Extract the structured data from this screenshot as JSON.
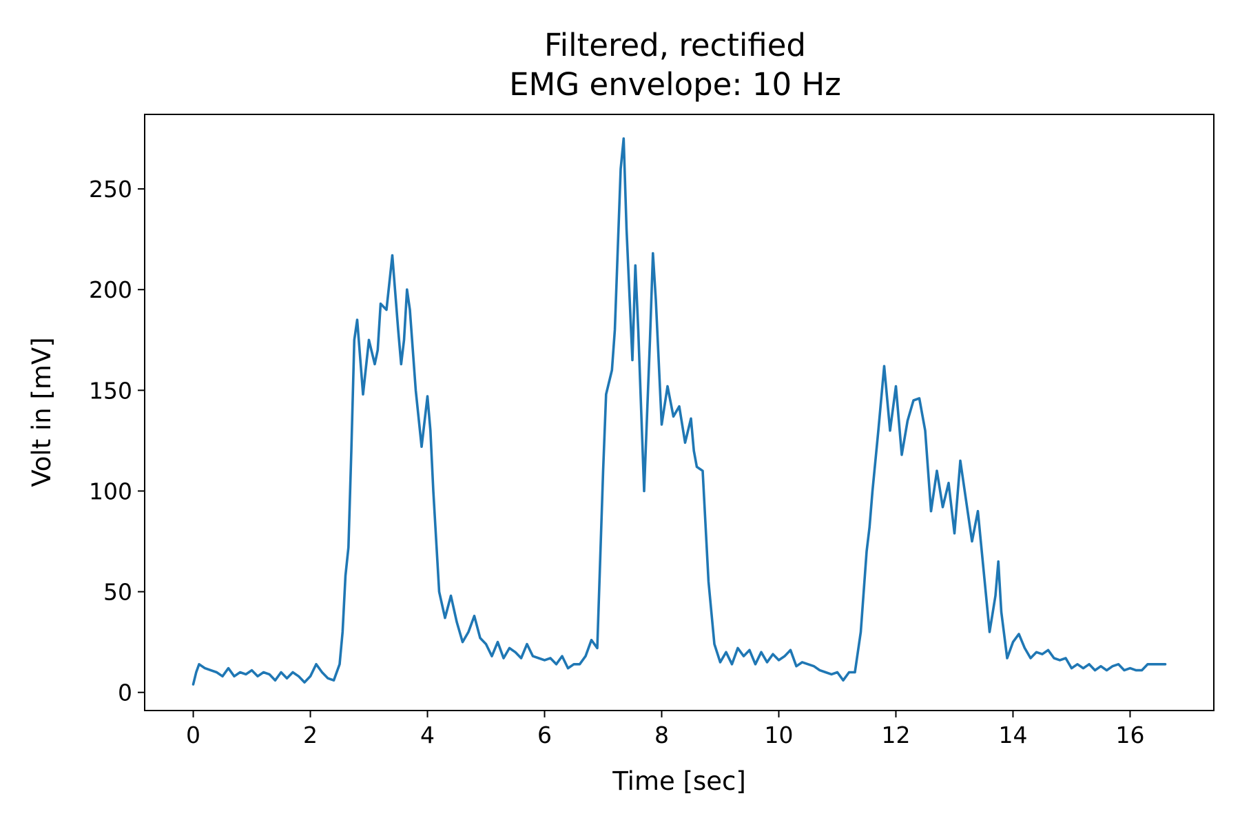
{
  "chart_data": {
    "type": "line",
    "title_line1": "Filtered, rectified",
    "title_line2": "EMG envelope: 10 Hz",
    "xlabel": "Time [sec]",
    "ylabel": "Volt in [mV]",
    "xlim": [
      -0.83,
      17.43
    ],
    "ylim": [
      -9,
      287
    ],
    "xticks": [
      0,
      2,
      4,
      6,
      8,
      10,
      12,
      14,
      16
    ],
    "yticks": [
      0,
      50,
      100,
      150,
      200,
      250
    ],
    "grid": false,
    "legend": "none",
    "series": [
      {
        "color": "#1f77b4",
        "points": [
          [
            0.0,
            4
          ],
          [
            0.05,
            10
          ],
          [
            0.1,
            14
          ],
          [
            0.2,
            12
          ],
          [
            0.3,
            11
          ],
          [
            0.4,
            10
          ],
          [
            0.5,
            8
          ],
          [
            0.6,
            12
          ],
          [
            0.7,
            8
          ],
          [
            0.8,
            10
          ],
          [
            0.9,
            9
          ],
          [
            1.0,
            11
          ],
          [
            1.1,
            8
          ],
          [
            1.2,
            10
          ],
          [
            1.3,
            9
          ],
          [
            1.4,
            6
          ],
          [
            1.5,
            10
          ],
          [
            1.6,
            7
          ],
          [
            1.7,
            10
          ],
          [
            1.8,
            8
          ],
          [
            1.9,
            5
          ],
          [
            2.0,
            8
          ],
          [
            2.1,
            14
          ],
          [
            2.2,
            10
          ],
          [
            2.3,
            7
          ],
          [
            2.4,
            6
          ],
          [
            2.5,
            14
          ],
          [
            2.55,
            30
          ],
          [
            2.6,
            58
          ],
          [
            2.65,
            72
          ],
          [
            2.7,
            120
          ],
          [
            2.75,
            175
          ],
          [
            2.8,
            185
          ],
          [
            2.9,
            148
          ],
          [
            3.0,
            175
          ],
          [
            3.1,
            163
          ],
          [
            3.15,
            170
          ],
          [
            3.2,
            193
          ],
          [
            3.3,
            190
          ],
          [
            3.4,
            217
          ],
          [
            3.5,
            180
          ],
          [
            3.55,
            163
          ],
          [
            3.6,
            175
          ],
          [
            3.65,
            200
          ],
          [
            3.7,
            190
          ],
          [
            3.8,
            150
          ],
          [
            3.9,
            122
          ],
          [
            4.0,
            147
          ],
          [
            4.05,
            130
          ],
          [
            4.1,
            100
          ],
          [
            4.2,
            50
          ],
          [
            4.3,
            37
          ],
          [
            4.4,
            48
          ],
          [
            4.5,
            35
          ],
          [
            4.6,
            25
          ],
          [
            4.7,
            30
          ],
          [
            4.8,
            38
          ],
          [
            4.9,
            27
          ],
          [
            5.0,
            24
          ],
          [
            5.1,
            18
          ],
          [
            5.2,
            25
          ],
          [
            5.3,
            17
          ],
          [
            5.4,
            22
          ],
          [
            5.5,
            20
          ],
          [
            5.6,
            17
          ],
          [
            5.7,
            24
          ],
          [
            5.8,
            18
          ],
          [
            5.9,
            17
          ],
          [
            6.0,
            16
          ],
          [
            6.1,
            17
          ],
          [
            6.2,
            14
          ],
          [
            6.3,
            18
          ],
          [
            6.4,
            12
          ],
          [
            6.5,
            14
          ],
          [
            6.6,
            14
          ],
          [
            6.7,
            18
          ],
          [
            6.8,
            26
          ],
          [
            6.9,
            22
          ],
          [
            7.0,
            110
          ],
          [
            7.05,
            148
          ],
          [
            7.15,
            160
          ],
          [
            7.2,
            180
          ],
          [
            7.3,
            260
          ],
          [
            7.35,
            275
          ],
          [
            7.4,
            230
          ],
          [
            7.5,
            165
          ],
          [
            7.55,
            212
          ],
          [
            7.6,
            180
          ],
          [
            7.7,
            100
          ],
          [
            7.8,
            175
          ],
          [
            7.85,
            218
          ],
          [
            7.9,
            195
          ],
          [
            8.0,
            133
          ],
          [
            8.1,
            152
          ],
          [
            8.2,
            137
          ],
          [
            8.3,
            142
          ],
          [
            8.4,
            124
          ],
          [
            8.5,
            136
          ],
          [
            8.55,
            120
          ],
          [
            8.6,
            112
          ],
          [
            8.7,
            110
          ],
          [
            8.8,
            55
          ],
          [
            8.9,
            24
          ],
          [
            9.0,
            15
          ],
          [
            9.1,
            20
          ],
          [
            9.2,
            14
          ],
          [
            9.3,
            22
          ],
          [
            9.4,
            18
          ],
          [
            9.5,
            21
          ],
          [
            9.6,
            14
          ],
          [
            9.7,
            20
          ],
          [
            9.8,
            15
          ],
          [
            9.9,
            19
          ],
          [
            10.0,
            16
          ],
          [
            10.1,
            18
          ],
          [
            10.2,
            21
          ],
          [
            10.3,
            13
          ],
          [
            10.4,
            15
          ],
          [
            10.5,
            14
          ],
          [
            10.6,
            13
          ],
          [
            10.7,
            11
          ],
          [
            10.8,
            10
          ],
          [
            10.9,
            9
          ],
          [
            11.0,
            10
          ],
          [
            11.1,
            6
          ],
          [
            11.2,
            10
          ],
          [
            11.3,
            10
          ],
          [
            11.4,
            30
          ],
          [
            11.5,
            70
          ],
          [
            11.55,
            82
          ],
          [
            11.6,
            100
          ],
          [
            11.7,
            130
          ],
          [
            11.8,
            162
          ],
          [
            11.9,
            130
          ],
          [
            12.0,
            152
          ],
          [
            12.1,
            118
          ],
          [
            12.2,
            135
          ],
          [
            12.3,
            145
          ],
          [
            12.4,
            146
          ],
          [
            12.5,
            130
          ],
          [
            12.6,
            90
          ],
          [
            12.7,
            110
          ],
          [
            12.8,
            92
          ],
          [
            12.9,
            104
          ],
          [
            13.0,
            79
          ],
          [
            13.1,
            115
          ],
          [
            13.2,
            95
          ],
          [
            13.3,
            75
          ],
          [
            13.4,
            90
          ],
          [
            13.5,
            60
          ],
          [
            13.6,
            30
          ],
          [
            13.7,
            48
          ],
          [
            13.75,
            65
          ],
          [
            13.8,
            40
          ],
          [
            13.9,
            17
          ],
          [
            14.0,
            25
          ],
          [
            14.1,
            29
          ],
          [
            14.2,
            22
          ],
          [
            14.3,
            17
          ],
          [
            14.4,
            20
          ],
          [
            14.5,
            19
          ],
          [
            14.6,
            21
          ],
          [
            14.7,
            17
          ],
          [
            14.8,
            16
          ],
          [
            14.9,
            17
          ],
          [
            15.0,
            12
          ],
          [
            15.1,
            14
          ],
          [
            15.2,
            12
          ],
          [
            15.3,
            14
          ],
          [
            15.4,
            11
          ],
          [
            15.5,
            13
          ],
          [
            15.6,
            11
          ],
          [
            15.7,
            13
          ],
          [
            15.8,
            14
          ],
          [
            15.9,
            11
          ],
          [
            16.0,
            12
          ],
          [
            16.1,
            11
          ],
          [
            16.2,
            11
          ],
          [
            16.3,
            14
          ],
          [
            16.4,
            14
          ],
          [
            16.5,
            14
          ],
          [
            16.6,
            14
          ]
        ]
      }
    ]
  }
}
